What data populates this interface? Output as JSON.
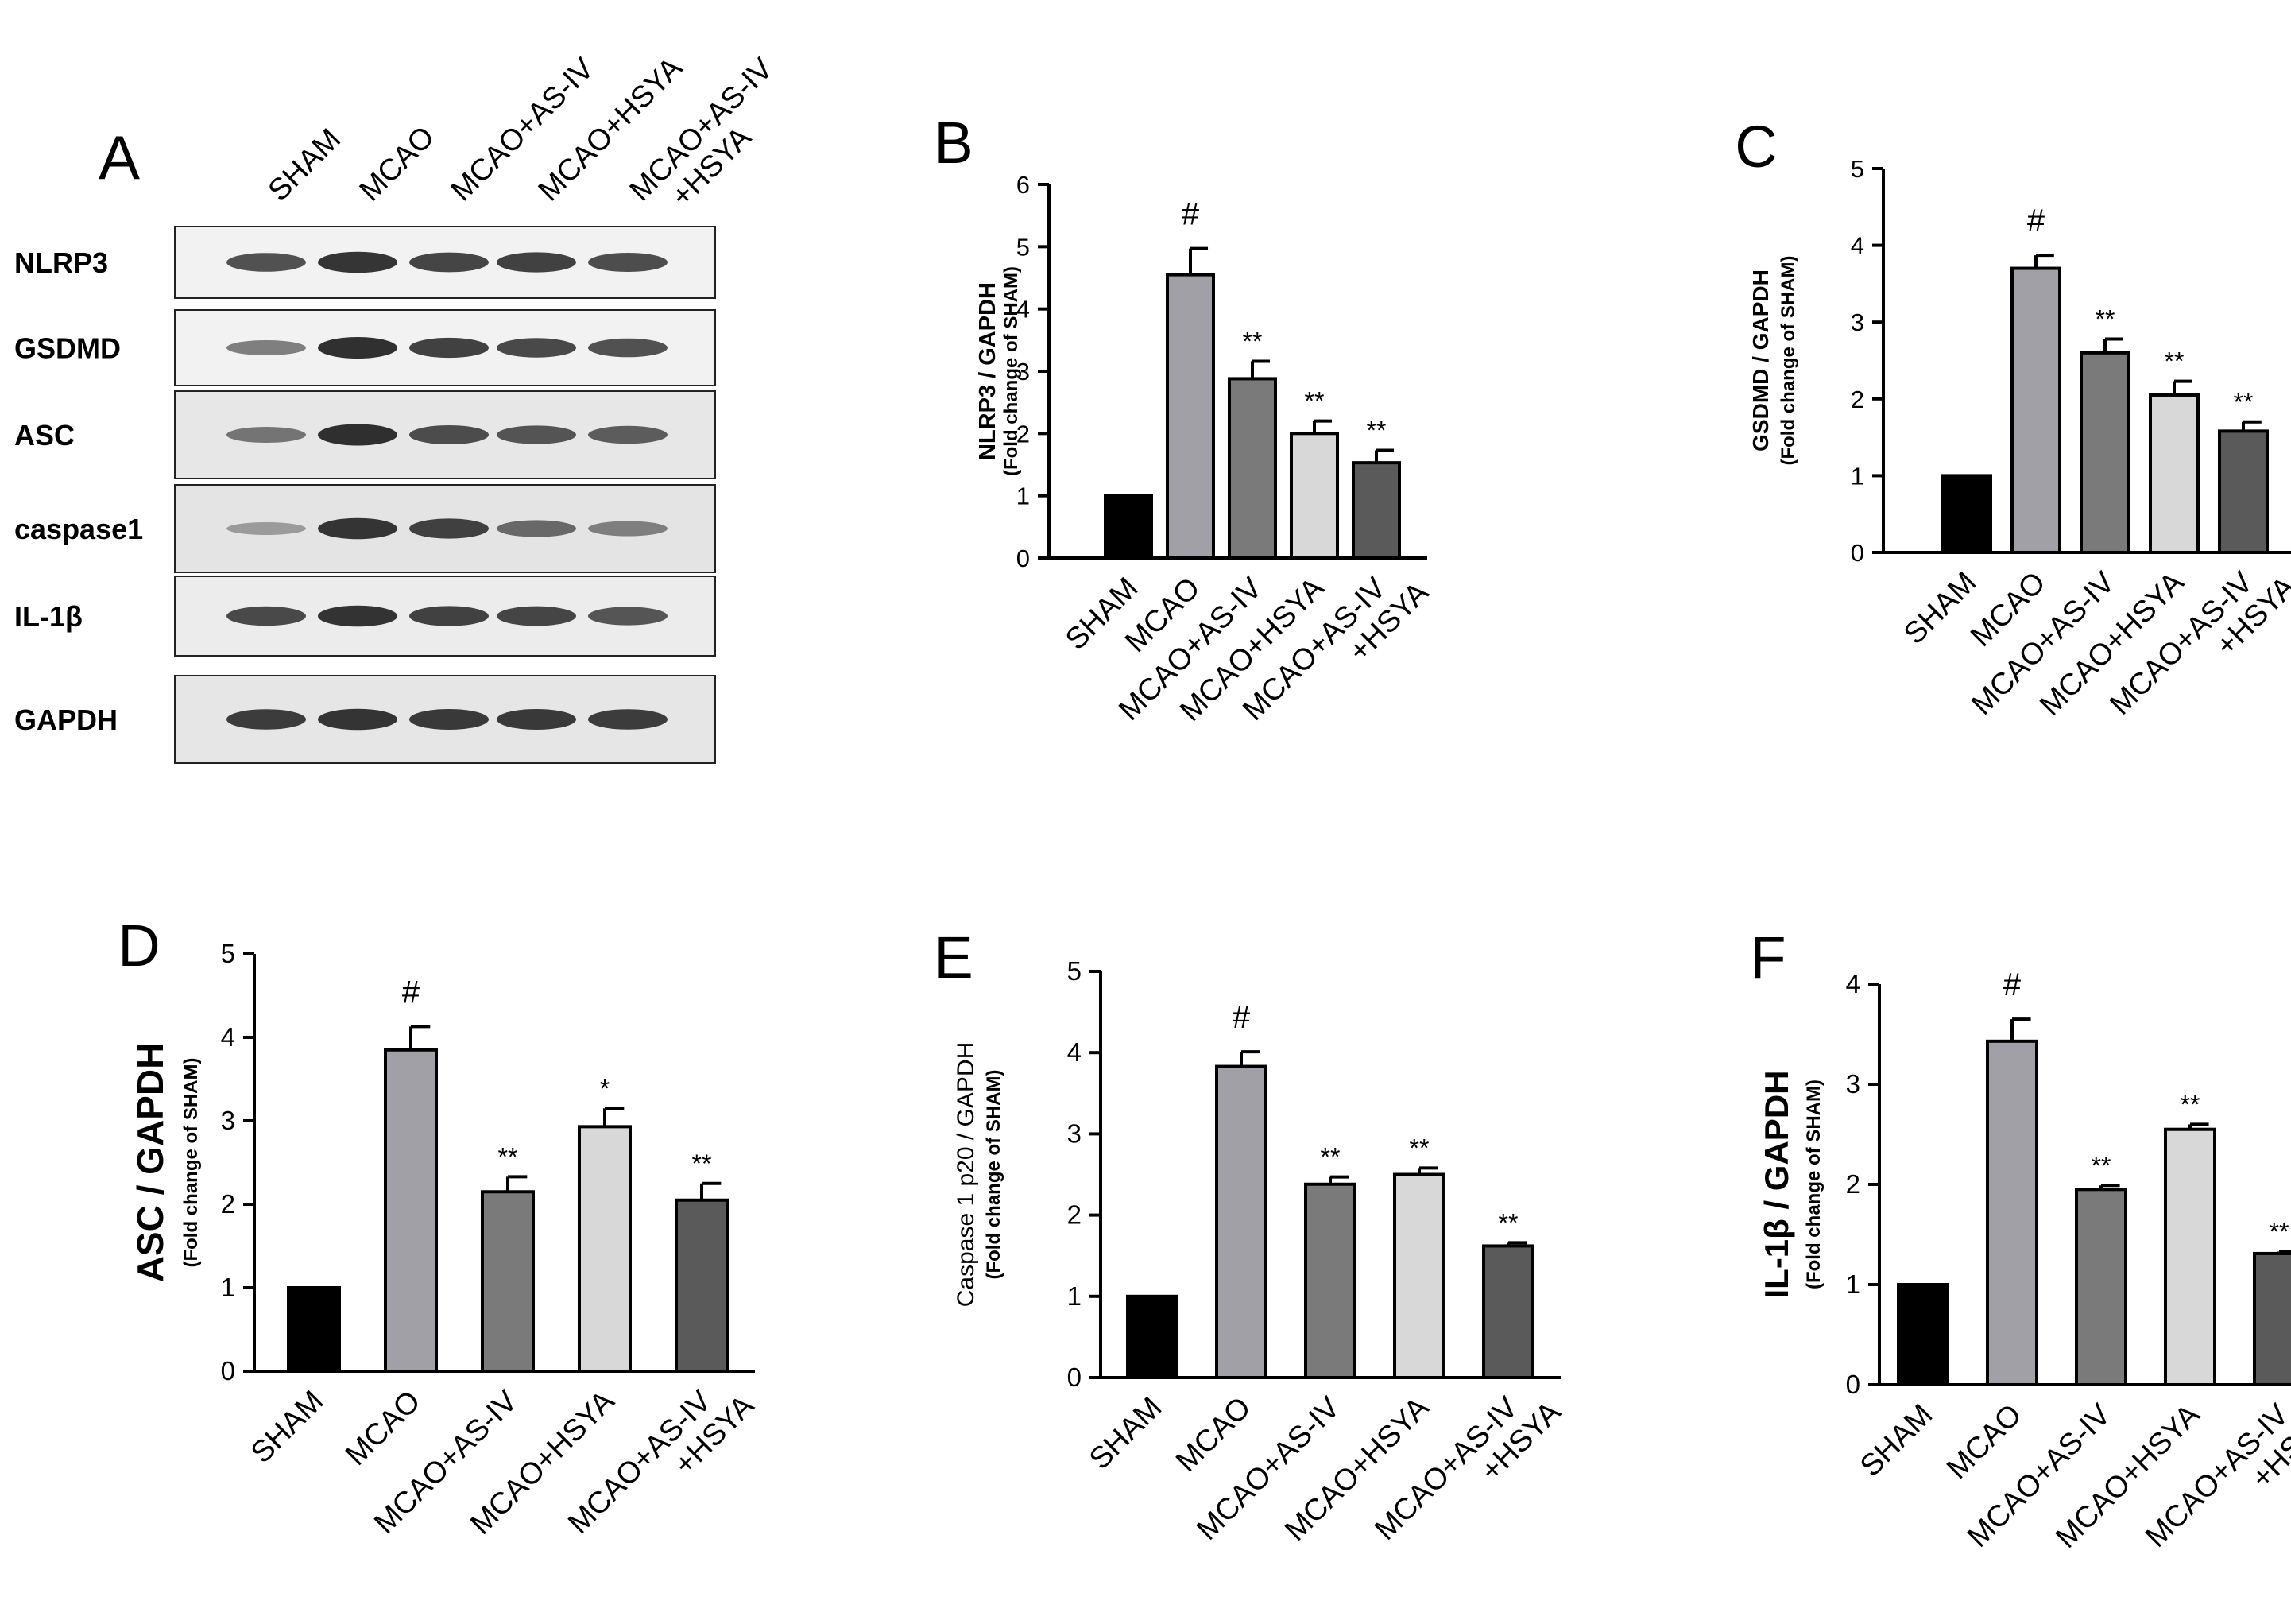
{
  "panel_a": {
    "letter": "A",
    "lanes": [
      {
        "line1": "SHAM",
        "line2": ""
      },
      {
        "line1": "MCAO",
        "line2": ""
      },
      {
        "line1": "MCAO+AS-IV",
        "line2": ""
      },
      {
        "line1": "MCAO+HSYA",
        "line2": ""
      },
      {
        "line1": "MCAO+AS-IV",
        "line2": "+HSYA"
      }
    ],
    "blots": [
      {
        "label": "NLRP3",
        "bg": "#f2f2f2",
        "intensity": [
          0.78,
          0.92,
          0.84,
          0.86,
          0.8
        ]
      },
      {
        "label": "GSDMD",
        "bg": "#f2f2f2",
        "intensity": [
          0.55,
          0.95,
          0.86,
          0.82,
          0.78
        ]
      },
      {
        "label": "ASC",
        "bg": "#e7e7e7",
        "intensity": [
          0.6,
          0.95,
          0.8,
          0.76,
          0.72
        ]
      },
      {
        "label": "caspase1",
        "bg": "#e4e4e4",
        "intensity": [
          0.4,
          0.92,
          0.86,
          0.66,
          0.55
        ]
      },
      {
        "label": "IL-1β",
        "bg": "#ececec",
        "intensity": [
          0.82,
          0.93,
          0.86,
          0.84,
          0.76
        ]
      },
      {
        "label": "GAPDH",
        "bg": "#e6e6e6",
        "intensity": [
          0.88,
          0.92,
          0.9,
          0.9,
          0.88
        ]
      }
    ]
  },
  "bar_colors": [
    "#000000",
    "#a0a0a6",
    "#7a7a7a",
    "#d8d8d8",
    "#5a5a5a"
  ],
  "chart_data": [
    {
      "panel": "B",
      "type": "bar",
      "categories": [
        {
          "line1": "SHAM",
          "line2": ""
        },
        {
          "line1": "MCAO",
          "line2": ""
        },
        {
          "line1": "MCAO+AS-IV",
          "line2": ""
        },
        {
          "line1": "MCAO+HSYA",
          "line2": ""
        },
        {
          "line1": "MCAO+AS-IV",
          "line2": "+HSYA"
        }
      ],
      "values": [
        1.0,
        4.55,
        2.88,
        2.0,
        1.53
      ],
      "errors": [
        0,
        0.42,
        0.28,
        0.2,
        0.2
      ],
      "annotations": [
        "",
        "#",
        "**",
        "**",
        "**"
      ],
      "ylabel": "NLRP3 / GAPDH",
      "ylabel_sub": "(Fold change of SHAM)",
      "ylim": [
        0,
        6
      ],
      "yticks": [
        0,
        1,
        2,
        3,
        4,
        5,
        6
      ]
    },
    {
      "panel": "C",
      "type": "bar",
      "categories": [
        {
          "line1": "SHAM",
          "line2": ""
        },
        {
          "line1": "MCAO",
          "line2": ""
        },
        {
          "line1": "MCAO+AS-IV",
          "line2": ""
        },
        {
          "line1": "MCAO+HSYA",
          "line2": ""
        },
        {
          "line1": "MCAO+AS-IV",
          "line2": "+HSYA"
        }
      ],
      "values": [
        1.0,
        3.7,
        2.6,
        2.05,
        1.58
      ],
      "errors": [
        0,
        0.17,
        0.18,
        0.18,
        0.12
      ],
      "annotations": [
        "",
        "#",
        "**",
        "**",
        "**"
      ],
      "ylabel": "GSDMD / GAPDH",
      "ylabel_sub": "(Fold change of SHAM)",
      "ylim": [
        0,
        5
      ],
      "yticks": [
        0,
        1,
        2,
        3,
        4,
        5
      ]
    },
    {
      "panel": "D",
      "type": "bar",
      "categories": [
        {
          "line1": "SHAM",
          "line2": ""
        },
        {
          "line1": "MCAO",
          "line2": ""
        },
        {
          "line1": "MCAO+AS-IV",
          "line2": ""
        },
        {
          "line1": "MCAO+HSYA",
          "line2": ""
        },
        {
          "line1": "MCAO+AS-IV",
          "line2": "+HSYA"
        }
      ],
      "values": [
        1.0,
        3.85,
        2.15,
        2.93,
        2.05
      ],
      "errors": [
        0,
        0.28,
        0.18,
        0.22,
        0.2
      ],
      "annotations": [
        "",
        "#",
        "**",
        "*",
        "**"
      ],
      "ylabel": "ASC / GAPDH",
      "ylabel_sub": "(Fold change of SHAM)",
      "ylim": [
        0,
        5
      ],
      "yticks": [
        0,
        1,
        2,
        3,
        4,
        5
      ]
    },
    {
      "panel": "E",
      "type": "bar",
      "categories": [
        {
          "line1": "SHAM",
          "line2": ""
        },
        {
          "line1": "MCAO",
          "line2": ""
        },
        {
          "line1": "MCAO+AS-IV",
          "line2": ""
        },
        {
          "line1": "MCAO+HSYA",
          "line2": ""
        },
        {
          "line1": "MCAO+AS-IV",
          "line2": "+HSYA"
        }
      ],
      "values": [
        1.0,
        3.83,
        2.38,
        2.5,
        1.62
      ],
      "errors": [
        0,
        0.18,
        0.09,
        0.08,
        0.04
      ],
      "annotations": [
        "",
        "#",
        "**",
        "**",
        "**"
      ],
      "ylabel": "Caspase 1 p20  / GAPDH",
      "ylabel_sub": "(Fold change of SHAM)",
      "ylim": [
        0,
        5
      ],
      "yticks": [
        0,
        1,
        2,
        3,
        4,
        5
      ]
    },
    {
      "panel": "F",
      "type": "bar",
      "categories": [
        {
          "line1": "SHAM",
          "line2": ""
        },
        {
          "line1": "MCAO",
          "line2": ""
        },
        {
          "line1": "MCAO+AS-IV",
          "line2": ""
        },
        {
          "line1": "MCAO+HSYA",
          "line2": ""
        },
        {
          "line1": "MCAO+AS-IV",
          "line2": "+HSYA"
        }
      ],
      "values": [
        1.0,
        3.43,
        1.95,
        2.55,
        1.31
      ],
      "errors": [
        0,
        0.22,
        0.04,
        0.05,
        0.02
      ],
      "annotations": [
        "",
        "#",
        "**",
        "**",
        "**"
      ],
      "ylabel": "IL-1β / GAPDH",
      "ylabel_sub": "(Fold change of SHAM)",
      "ylim": [
        0,
        4
      ],
      "yticks": [
        0,
        1,
        2,
        3,
        4
      ]
    }
  ]
}
